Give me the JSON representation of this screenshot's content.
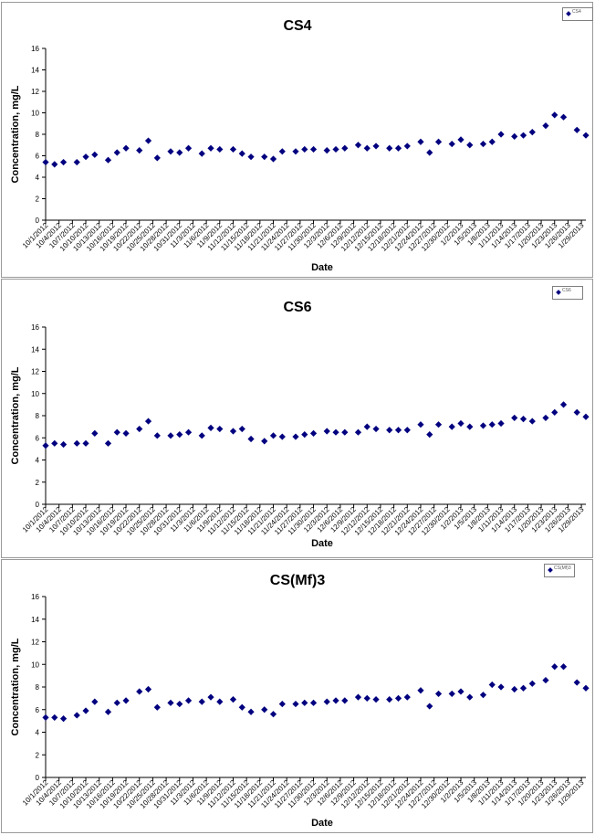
{
  "chart_data": [
    {
      "type": "scatter",
      "title": "CS4",
      "xlabel": "Date",
      "ylabel": "Concentration, mg/L",
      "ylim": [
        0,
        16
      ],
      "yticks": [
        0,
        2,
        4,
        6,
        8,
        10,
        12,
        14,
        16
      ],
      "xticks": [
        "10/1/2012",
        "10/4/2012",
        "10/7/2012",
        "10/10/2012",
        "10/13/2012",
        "10/16/2012",
        "10/19/2012",
        "10/22/2012",
        "10/25/2012",
        "10/28/2012",
        "10/31/2012",
        "11/3/2012",
        "11/6/2012",
        "11/9/2012",
        "11/12/2012",
        "11/15/2012",
        "11/18/2012",
        "11/21/2012",
        "11/24/2012",
        "11/27/2012",
        "11/30/2012",
        "12/3/2012",
        "12/6/2012",
        "12/9/2012",
        "12/12/2012",
        "12/15/2012",
        "12/18/2012",
        "12/21/2012",
        "12/24/2012",
        "12/27/2012",
        "12/30/2012",
        "1/2/2013",
        "1/5/2013",
        "1/8/2013",
        "1/11/2013",
        "1/14/2013",
        "1/17/2013",
        "1/20/2013",
        "1/23/2013",
        "1/26/2013",
        "1/29/2013"
      ],
      "legend": {
        "label": "CS4",
        "position": "top-right"
      },
      "x_start": "10/1/2012",
      "x_end": "1/30/2013",
      "points": [
        [
          "10/1/2012",
          5.4
        ],
        [
          "10/3/2012",
          5.2
        ],
        [
          "10/5/2012",
          5.4
        ],
        [
          "10/8/2012",
          5.4
        ],
        [
          "10/10/2012",
          5.9
        ],
        [
          "10/12/2012",
          6.1
        ],
        [
          "10/15/2012",
          5.6
        ],
        [
          "10/17/2012",
          6.3
        ],
        [
          "10/19/2012",
          6.7
        ],
        [
          "10/22/2012",
          6.5
        ],
        [
          "10/24/2012",
          7.4
        ],
        [
          "10/26/2012",
          5.8
        ],
        [
          "10/29/2012",
          6.4
        ],
        [
          "10/31/2012",
          6.3
        ],
        [
          "11/2/2012",
          6.7
        ],
        [
          "11/5/2012",
          6.2
        ],
        [
          "11/7/2012",
          6.7
        ],
        [
          "11/9/2012",
          6.6
        ],
        [
          "11/12/2012",
          6.6
        ],
        [
          "11/14/2012",
          6.2
        ],
        [
          "11/16/2012",
          5.9
        ],
        [
          "11/19/2012",
          5.9
        ],
        [
          "11/21/2012",
          5.7
        ],
        [
          "11/23/2012",
          6.4
        ],
        [
          "11/26/2012",
          6.4
        ],
        [
          "11/28/2012",
          6.6
        ],
        [
          "11/30/2012",
          6.6
        ],
        [
          "12/3/2012",
          6.5
        ],
        [
          "12/5/2012",
          6.6
        ],
        [
          "12/7/2012",
          6.7
        ],
        [
          "12/10/2012",
          7.0
        ],
        [
          "12/12/2012",
          6.7
        ],
        [
          "12/14/2012",
          6.9
        ],
        [
          "12/17/2012",
          6.7
        ],
        [
          "12/19/2012",
          6.7
        ],
        [
          "12/21/2012",
          6.9
        ],
        [
          "12/24/2012",
          7.3
        ],
        [
          "12/26/2012",
          6.3
        ],
        [
          "12/28/2012",
          7.3
        ],
        [
          "12/31/2012",
          7.1
        ],
        [
          "1/2/2013",
          7.5
        ],
        [
          "1/4/2013",
          7.0
        ],
        [
          "1/7/2013",
          7.1
        ],
        [
          "1/9/2013",
          7.3
        ],
        [
          "1/11/2013",
          8.0
        ],
        [
          "1/14/2013",
          7.8
        ],
        [
          "1/16/2013",
          7.9
        ],
        [
          "1/18/2013",
          8.2
        ],
        [
          "1/21/2013",
          8.8
        ],
        [
          "1/23/2013",
          9.8
        ],
        [
          "1/25/2013",
          9.6
        ],
        [
          "1/28/2013",
          8.4
        ],
        [
          "1/30/2013",
          7.9
        ]
      ]
    },
    {
      "type": "scatter",
      "title": "CS6",
      "xlabel": "Date",
      "ylabel": "Concentration, mg/L",
      "ylim": [
        0,
        16
      ],
      "yticks": [
        0,
        2,
        4,
        6,
        8,
        10,
        12,
        14,
        16
      ],
      "xticks": [
        "10/1/2012",
        "10/4/2012",
        "10/7/2012",
        "10/10/2012",
        "10/13/2012",
        "10/16/2012",
        "10/19/2012",
        "10/22/2012",
        "10/25/2012",
        "10/28/2012",
        "10/31/2012",
        "11/3/2012",
        "11/6/2012",
        "11/9/2012",
        "11/12/2012",
        "11/15/2012",
        "11/18/2012",
        "11/21/2012",
        "11/24/2012",
        "11/27/2012",
        "11/30/2012",
        "12/3/2012",
        "12/6/2012",
        "12/9/2012",
        "12/12/2012",
        "12/15/2012",
        "12/18/2012",
        "12/21/2012",
        "12/24/2012",
        "12/27/2012",
        "12/30/2012",
        "1/2/2013",
        "1/5/2013",
        "1/8/2013",
        "1/11/2013",
        "1/14/2013",
        "1/17/2013",
        "1/20/2013",
        "1/23/2013",
        "1/26/2013",
        "1/29/2013"
      ],
      "legend": {
        "label": "CS6",
        "position": "top-right"
      },
      "x_start": "10/1/2012",
      "x_end": "1/30/2013",
      "points": [
        [
          "10/1/2012",
          5.3
        ],
        [
          "10/3/2012",
          5.5
        ],
        [
          "10/5/2012",
          5.4
        ],
        [
          "10/8/2012",
          5.5
        ],
        [
          "10/10/2012",
          5.5
        ],
        [
          "10/12/2012",
          6.4
        ],
        [
          "10/15/2012",
          5.5
        ],
        [
          "10/17/2012",
          6.5
        ],
        [
          "10/19/2012",
          6.4
        ],
        [
          "10/22/2012",
          6.8
        ],
        [
          "10/24/2012",
          7.5
        ],
        [
          "10/26/2012",
          6.2
        ],
        [
          "10/29/2012",
          6.2
        ],
        [
          "10/31/2012",
          6.3
        ],
        [
          "11/2/2012",
          6.5
        ],
        [
          "11/5/2012",
          6.2
        ],
        [
          "11/7/2012",
          6.9
        ],
        [
          "11/9/2012",
          6.8
        ],
        [
          "11/12/2012",
          6.6
        ],
        [
          "11/14/2012",
          6.8
        ],
        [
          "11/16/2012",
          5.9
        ],
        [
          "11/19/2012",
          5.7
        ],
        [
          "11/21/2012",
          6.2
        ],
        [
          "11/23/2012",
          6.1
        ],
        [
          "11/26/2012",
          6.1
        ],
        [
          "11/28/2012",
          6.3
        ],
        [
          "11/30/2012",
          6.4
        ],
        [
          "12/3/2012",
          6.6
        ],
        [
          "12/5/2012",
          6.5
        ],
        [
          "12/7/2012",
          6.5
        ],
        [
          "12/10/2012",
          6.5
        ],
        [
          "12/12/2012",
          7.0
        ],
        [
          "12/14/2012",
          6.8
        ],
        [
          "12/17/2012",
          6.7
        ],
        [
          "12/19/2012",
          6.7
        ],
        [
          "12/21/2012",
          6.7
        ],
        [
          "12/24/2012",
          7.2
        ],
        [
          "12/26/2012",
          6.3
        ],
        [
          "12/28/2012",
          7.2
        ],
        [
          "12/31/2012",
          7.0
        ],
        [
          "1/2/2013",
          7.3
        ],
        [
          "1/4/2013",
          7.0
        ],
        [
          "1/7/2013",
          7.1
        ],
        [
          "1/9/2013",
          7.2
        ],
        [
          "1/11/2013",
          7.3
        ],
        [
          "1/14/2013",
          7.8
        ],
        [
          "1/16/2013",
          7.7
        ],
        [
          "1/18/2013",
          7.5
        ],
        [
          "1/21/2013",
          7.8
        ],
        [
          "1/23/2013",
          8.3
        ],
        [
          "1/25/2013",
          9.0
        ],
        [
          "1/28/2013",
          8.3
        ],
        [
          "1/30/2013",
          7.9
        ]
      ]
    },
    {
      "type": "scatter",
      "title": "CS(Mf)3",
      "xlabel": "Date",
      "ylabel": "Concentration, mg/L",
      "ylim": [
        0,
        16
      ],
      "yticks": [
        0,
        2,
        4,
        6,
        8,
        10,
        12,
        14,
        16
      ],
      "xticks": [
        "10/1/2012",
        "10/4/2012",
        "10/7/2012",
        "10/10/2012",
        "10/13/2012",
        "10/16/2012",
        "10/19/2012",
        "10/22/2012",
        "10/25/2012",
        "10/28/2012",
        "10/31/2012",
        "11/3/2012",
        "11/6/2012",
        "11/9/2012",
        "11/12/2012",
        "11/15/2012",
        "11/18/2012",
        "11/21/2012",
        "11/24/2012",
        "11/27/2012",
        "11/30/2012",
        "12/3/2012",
        "12/6/2012",
        "12/9/2012",
        "12/12/2012",
        "12/15/2012",
        "12/18/2012",
        "12/21/2012",
        "12/24/2012",
        "12/27/2012",
        "12/30/2012",
        "1/2/2013",
        "1/5/2013",
        "1/8/2013",
        "1/11/2013",
        "1/14/2013",
        "1/17/2013",
        "1/20/2013",
        "1/23/2013",
        "1/26/2013",
        "1/29/2013"
      ],
      "legend": {
        "label": "CS(Mf)3",
        "position": "top-right"
      },
      "x_start": "10/1/2012",
      "x_end": "1/30/2013",
      "points": [
        [
          "10/1/2012",
          5.3
        ],
        [
          "10/3/2012",
          5.3
        ],
        [
          "10/5/2012",
          5.2
        ],
        [
          "10/8/2012",
          5.5
        ],
        [
          "10/10/2012",
          5.9
        ],
        [
          "10/12/2012",
          6.7
        ],
        [
          "10/15/2012",
          5.8
        ],
        [
          "10/17/2012",
          6.6
        ],
        [
          "10/19/2012",
          6.8
        ],
        [
          "10/22/2012",
          7.6
        ],
        [
          "10/24/2012",
          7.8
        ],
        [
          "10/26/2012",
          6.2
        ],
        [
          "10/29/2012",
          6.6
        ],
        [
          "10/31/2012",
          6.5
        ],
        [
          "11/2/2012",
          6.8
        ],
        [
          "11/5/2012",
          6.7
        ],
        [
          "11/7/2012",
          7.1
        ],
        [
          "11/9/2012",
          6.7
        ],
        [
          "11/12/2012",
          6.9
        ],
        [
          "11/14/2012",
          6.2
        ],
        [
          "11/16/2012",
          5.8
        ],
        [
          "11/19/2012",
          6.0
        ],
        [
          "11/21/2012",
          5.6
        ],
        [
          "11/23/2012",
          6.5
        ],
        [
          "11/26/2012",
          6.5
        ],
        [
          "11/28/2012",
          6.6
        ],
        [
          "11/30/2012",
          6.6
        ],
        [
          "12/3/2012",
          6.7
        ],
        [
          "12/5/2012",
          6.8
        ],
        [
          "12/7/2012",
          6.8
        ],
        [
          "12/10/2012",
          7.1
        ],
        [
          "12/12/2012",
          7.0
        ],
        [
          "12/14/2012",
          6.9
        ],
        [
          "12/17/2012",
          6.9
        ],
        [
          "12/19/2012",
          7.0
        ],
        [
          "12/21/2012",
          7.1
        ],
        [
          "12/24/2012",
          7.7
        ],
        [
          "12/26/2012",
          6.3
        ],
        [
          "12/28/2012",
          7.4
        ],
        [
          "12/31/2012",
          7.4
        ],
        [
          "1/2/2013",
          7.6
        ],
        [
          "1/4/2013",
          7.1
        ],
        [
          "1/7/2013",
          7.3
        ],
        [
          "1/9/2013",
          8.2
        ],
        [
          "1/11/2013",
          8.0
        ],
        [
          "1/14/2013",
          7.8
        ],
        [
          "1/16/2013",
          7.9
        ],
        [
          "1/18/2013",
          8.3
        ],
        [
          "1/21/2013",
          8.6
        ],
        [
          "1/23/2013",
          9.8
        ],
        [
          "1/25/2013",
          9.8
        ],
        [
          "1/28/2013",
          8.4
        ],
        [
          "1/30/2013",
          7.9
        ]
      ]
    }
  ]
}
